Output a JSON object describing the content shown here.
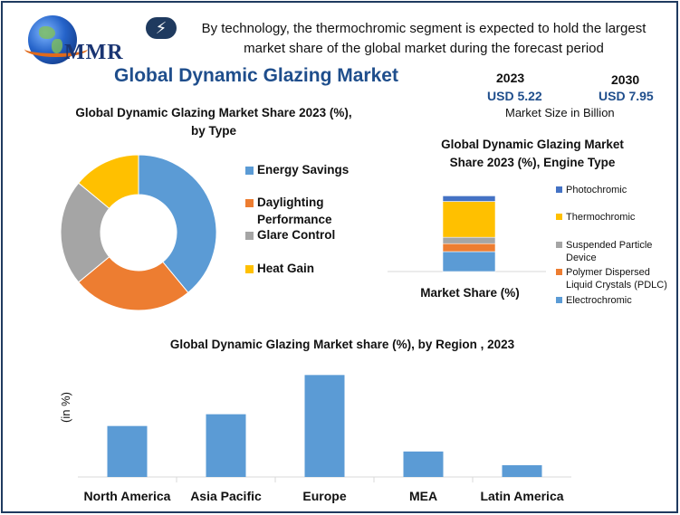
{
  "header": {
    "logo_text": "MMR",
    "headline": "By technology, the thermochromic segment is expected to hold the largest market share of the global market during the forecast period",
    "title": "Global Dynamic Glazing Market"
  },
  "market_size": {
    "year_a": "2023",
    "value_a": "USD 5.22",
    "year_b": "2030",
    "value_b": "USD 7.95",
    "caption": "Market Size in Billion"
  },
  "colors": {
    "blue": "#5b9bd5",
    "orange": "#ed7d31",
    "gray": "#a5a5a5",
    "yellow": "#ffc000",
    "dark_blue": "#4472c4",
    "title_blue": "#1f4e8c"
  },
  "chart_data": [
    {
      "type": "pie",
      "title": "Global Dynamic Glazing Market Share 2023 (%), by Type",
      "categories": [
        "Energy Savings",
        "Daylighting Performance",
        "Glare Control",
        "Heat Gain"
      ],
      "values": [
        39,
        25,
        22,
        14
      ],
      "colors": [
        "#5b9bd5",
        "#ed7d31",
        "#a5a5a5",
        "#ffc000"
      ]
    },
    {
      "type": "bar",
      "stacked": true,
      "title": "Global  Dynamic Glazing Market Share 2023 (%), Engine Type",
      "xlabel": "Market Share (%)",
      "series": [
        {
          "name": "Electrochromic",
          "values": [
            25
          ],
          "color": "#5b9bd5"
        },
        {
          "name": "Polymer Dispersed Liquid Crystals (PDLC)",
          "values": [
            10
          ],
          "color": "#ed7d31"
        },
        {
          "name": "Suspended Particle Device",
          "values": [
            8
          ],
          "color": "#a5a5a5"
        },
        {
          "name": "Thermochromic",
          "values": [
            45
          ],
          "color": "#ffc000"
        },
        {
          "name": "Photochromic",
          "values": [
            7
          ],
          "color": "#4472c4"
        }
      ],
      "legend_order": [
        "Photochromic",
        "Thermochromic",
        "Suspended Particle Device",
        "Polymer Dispersed Liquid Crystals (PDLC)",
        "Electrochromic"
      ],
      "legend_display": [
        "Photochromic",
        "Thermochromic",
        "Suspended Particle\nDevice",
        "Polymer Dispersed\nLiquid Crystals (PDLC)",
        "Electrochromic"
      ]
    },
    {
      "type": "bar",
      "title": "Global Dynamic Glazing Market share (%), by Region , 2023",
      "ylabel": "(in %)",
      "categories": [
        "North America",
        "Asia Pacific",
        "Europe",
        "MEA",
        "Latin America"
      ],
      "values": [
        26,
        32,
        52,
        13,
        6
      ],
      "ylim": [
        0,
        60
      ],
      "color": "#5b9bd5"
    }
  ]
}
